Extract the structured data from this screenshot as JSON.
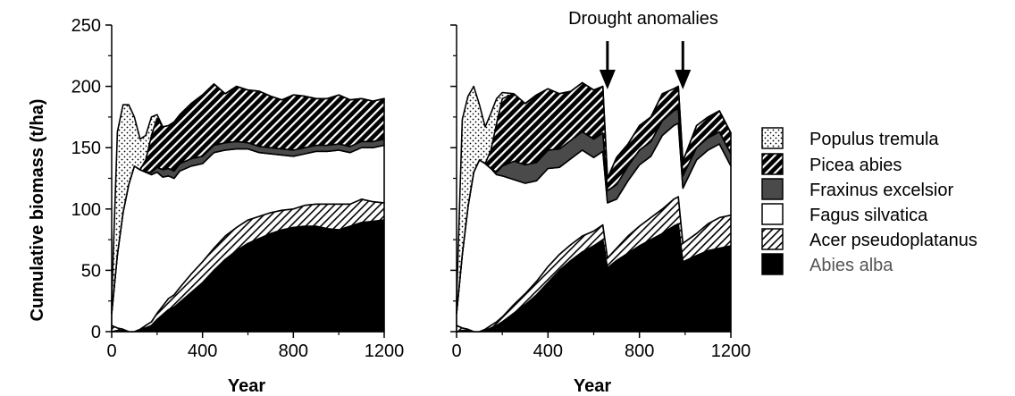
{
  "chart_data": {
    "type": "area",
    "ylabel": "Cumulative biomass (t/ha)",
    "ylim": [
      0,
      250
    ],
    "xlim": [
      0,
      1200
    ],
    "yticks": [
      "0",
      "50",
      "100",
      "150",
      "200",
      "250"
    ],
    "xticks": [
      "0",
      "400",
      "800",
      "1200"
    ],
    "legend_position": "right",
    "legend": [
      {
        "name": "Populus tremula",
        "pattern": "dots"
      },
      {
        "name": "Picea abies",
        "pattern": "black-stripes"
      },
      {
        "name": "Fraxinus excelsior",
        "pattern": "dark-gray"
      },
      {
        "name": "Fagus silvatica",
        "pattern": "white"
      },
      {
        "name": "Acer pseudoplatanus",
        "pattern": "light-stripes"
      },
      {
        "name": "Abies alba",
        "pattern": "black"
      }
    ],
    "colors": {
      "abies": "#000000",
      "fraxinus": "#4a4a4a",
      "fagus": "#ffffff",
      "outline": "#000000"
    },
    "panels": [
      {
        "xlabel": "Year",
        "x": [
          0,
          25,
          50,
          75,
          100,
          125,
          150,
          175,
          200,
          225,
          250,
          275,
          300,
          350,
          400,
          450,
          500,
          550,
          600,
          650,
          700,
          750,
          800,
          850,
          900,
          950,
          1000,
          1050,
          1100,
          1150,
          1200
        ],
        "abies": [
          0,
          1,
          1,
          0,
          0,
          1,
          3,
          5,
          10,
          14,
          18,
          20,
          24,
          32,
          40,
          50,
          59,
          66,
          72,
          76,
          80,
          83,
          85,
          86,
          86,
          84,
          83,
          86,
          89,
          90,
          91
        ],
        "acer": [
          5,
          2,
          1,
          0,
          0,
          1,
          2,
          3,
          5,
          7,
          9,
          10,
          12,
          15,
          17,
          18,
          19,
          19,
          19,
          18,
          17,
          16,
          15,
          17,
          18,
          20,
          21,
          18,
          19,
          16,
          14
        ],
        "fagus": [
          10,
          60,
          95,
          120,
          135,
          130,
          125,
          120,
          115,
          105,
          100,
          95,
          95,
          88,
          80,
          78,
          70,
          64,
          58,
          52,
          48,
          45,
          43,
          42,
          43,
          43,
          44,
          42,
          42,
          44,
          47
        ],
        "fraxinus": [
          0,
          0,
          0,
          0,
          0,
          0,
          0,
          2,
          4,
          6,
          6,
          6,
          6,
          6,
          6,
          6,
          6,
          6,
          5,
          5,
          5,
          5,
          5,
          5,
          5,
          5,
          5,
          5,
          5,
          5,
          5
        ],
        "picea": [
          0,
          0,
          0,
          0,
          0,
          0,
          10,
          30,
          40,
          35,
          35,
          40,
          40,
          45,
          50,
          50,
          40,
          45,
          43,
          45,
          42,
          40,
          45,
          42,
          38,
          38,
          40,
          38,
          35,
          33,
          33
        ],
        "populus": [
          10,
          100,
          88,
          65,
          40,
          25,
          20,
          15,
          3,
          0,
          0,
          0,
          0,
          0,
          0,
          0,
          0,
          0,
          0,
          0,
          0,
          0,
          0,
          0,
          0,
          0,
          0,
          0,
          0,
          0,
          0
        ]
      },
      {
        "xlabel": "Year",
        "x": [
          0,
          25,
          50,
          75,
          100,
          125,
          150,
          175,
          200,
          250,
          300,
          350,
          400,
          450,
          500,
          550,
          600,
          640,
          660,
          700,
          750,
          800,
          850,
          900,
          950,
          970,
          990,
          1050,
          1100,
          1150,
          1200
        ],
        "abies": [
          0,
          1,
          1,
          0,
          0,
          1,
          3,
          5,
          8,
          15,
          22,
          30,
          40,
          50,
          58,
          65,
          70,
          75,
          52,
          58,
          64,
          70,
          75,
          80,
          86,
          88,
          57,
          62,
          66,
          68,
          70
        ],
        "acer": [
          5,
          2,
          1,
          0,
          0,
          1,
          2,
          3,
          4,
          7,
          9,
          11,
          13,
          13,
          13,
          13,
          12,
          12,
          8,
          10,
          14,
          16,
          18,
          20,
          22,
          22,
          15,
          18,
          22,
          25,
          25
        ],
        "fagus": [
          10,
          60,
          100,
          130,
          140,
          135,
          128,
          120,
          115,
          102,
          90,
          82,
          80,
          71,
          70,
          70,
          60,
          60,
          45,
          40,
          45,
          50,
          50,
          60,
          60,
          60,
          45,
          60,
          60,
          60,
          40
        ],
        "fraxinus": [
          0,
          0,
          0,
          0,
          0,
          0,
          0,
          2,
          8,
          15,
          15,
          15,
          15,
          15,
          15,
          15,
          15,
          15,
          10,
          12,
          12,
          12,
          12,
          12,
          12,
          12,
          10,
          10,
          10,
          10,
          10
        ],
        "picea": [
          0,
          0,
          0,
          0,
          0,
          0,
          15,
          40,
          55,
          55,
          50,
          55,
          50,
          45,
          40,
          40,
          40,
          38,
          10,
          22,
          18,
          20,
          20,
          22,
          18,
          18,
          12,
          18,
          17,
          17,
          17
        ],
        "populus": [
          10,
          110,
          90,
          70,
          45,
          30,
          30,
          20,
          5,
          0,
          0,
          0,
          0,
          0,
          0,
          0,
          0,
          0,
          0,
          0,
          0,
          0,
          0,
          0,
          0,
          0,
          0,
          0,
          0,
          0,
          0
        ]
      }
    ],
    "annotation": {
      "text": "Drought anomalies",
      "arrow_years": [
        660,
        990
      ]
    }
  }
}
